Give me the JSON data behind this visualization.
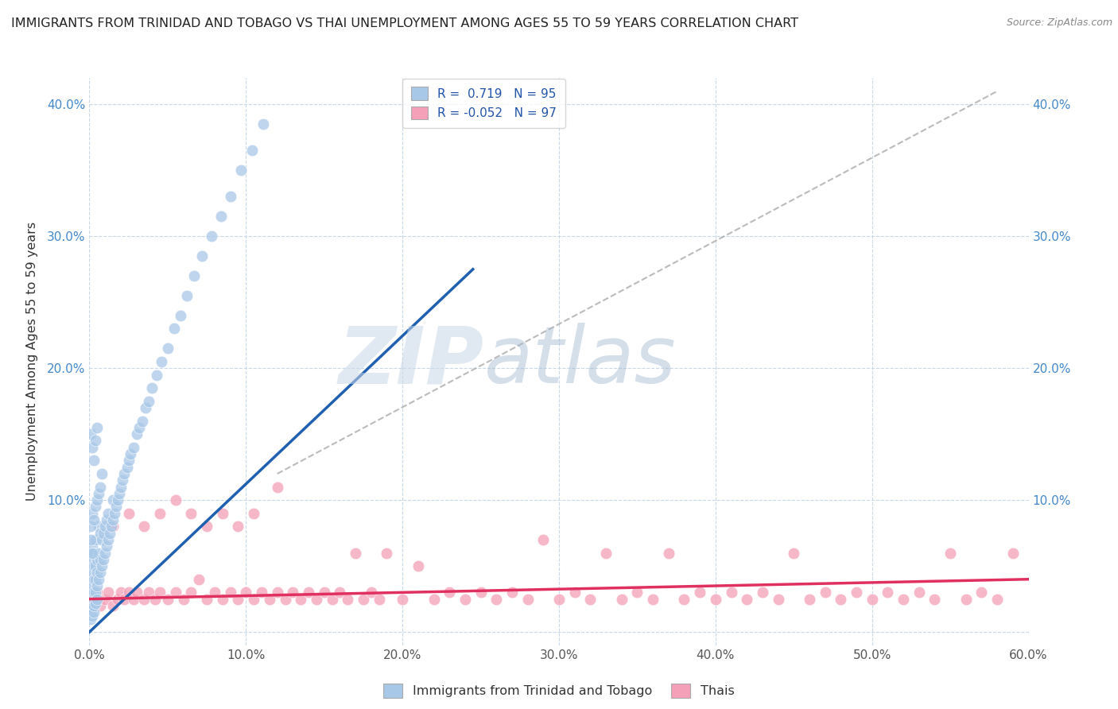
{
  "title": "IMMIGRANTS FROM TRINIDAD AND TOBAGO VS THAI UNEMPLOYMENT AMONG AGES 55 TO 59 YEARS CORRELATION CHART",
  "source": "Source: ZipAtlas.com",
  "ylabel": "Unemployment Among Ages 55 to 59 years",
  "xlim": [
    0.0,
    0.6
  ],
  "ylim": [
    -0.01,
    0.42
  ],
  "xticks": [
    0.0,
    0.1,
    0.2,
    0.3,
    0.4,
    0.5,
    0.6
  ],
  "xticklabels": [
    "0.0%",
    "10.0%",
    "20.0%",
    "30.0%",
    "40.0%",
    "50.0%",
    "60.0%"
  ],
  "yticks": [
    0.0,
    0.1,
    0.2,
    0.3,
    0.4
  ],
  "yticklabels": [
    "",
    "10.0%",
    "20.0%",
    "30.0%",
    "40.0%"
  ],
  "blue_R": "0.719",
  "blue_N": "95",
  "pink_R": "-0.052",
  "pink_N": "97",
  "blue_color": "#a8c8e8",
  "pink_color": "#f4a0b8",
  "blue_line_color": "#2060b0",
  "pink_line_color": "#e03060",
  "trend_line_color": "#aaaaaa",
  "grid_color": "#c8d8e8",
  "background_color": "#ffffff",
  "watermark_zip": "ZIP",
  "watermark_atlas": "atlas",
  "legend1": "Immigrants from Trinidad and Tobago",
  "legend2": "Thais",
  "blue_scatter_x": [
    0.001,
    0.001,
    0.001,
    0.001,
    0.001,
    0.002,
    0.002,
    0.002,
    0.002,
    0.002,
    0.003,
    0.003,
    0.003,
    0.003,
    0.004,
    0.004,
    0.004,
    0.004,
    0.005,
    0.005,
    0.005,
    0.006,
    0.006,
    0.006,
    0.007,
    0.007,
    0.007,
    0.008,
    0.008,
    0.009,
    0.009,
    0.01,
    0.01,
    0.011,
    0.011,
    0.012,
    0.012,
    0.013,
    0.014,
    0.015,
    0.015,
    0.016,
    0.017,
    0.018,
    0.019,
    0.02,
    0.021,
    0.022,
    0.024,
    0.025,
    0.026,
    0.028,
    0.03,
    0.032,
    0.034,
    0.036,
    0.038,
    0.04,
    0.043,
    0.046,
    0.05,
    0.054,
    0.058,
    0.062,
    0.067,
    0.072,
    0.078,
    0.084,
    0.09,
    0.097,
    0.104,
    0.111,
    0.001,
    0.001,
    0.002,
    0.002,
    0.003,
    0.003,
    0.004,
    0.005,
    0.001,
    0.001,
    0.002,
    0.002,
    0.003,
    0.004,
    0.005,
    0.006,
    0.007,
    0.008,
    0.001,
    0.002,
    0.003,
    0.004,
    0.005
  ],
  "blue_scatter_y": [
    0.02,
    0.03,
    0.04,
    0.05,
    0.06,
    0.025,
    0.035,
    0.045,
    0.055,
    0.065,
    0.03,
    0.04,
    0.05,
    0.06,
    0.03,
    0.04,
    0.05,
    0.07,
    0.035,
    0.045,
    0.055,
    0.04,
    0.06,
    0.08,
    0.045,
    0.055,
    0.075,
    0.05,
    0.07,
    0.055,
    0.075,
    0.06,
    0.08,
    0.065,
    0.085,
    0.07,
    0.09,
    0.075,
    0.08,
    0.085,
    0.1,
    0.09,
    0.095,
    0.1,
    0.105,
    0.11,
    0.115,
    0.12,
    0.125,
    0.13,
    0.135,
    0.14,
    0.15,
    0.155,
    0.16,
    0.17,
    0.175,
    0.185,
    0.195,
    0.205,
    0.215,
    0.23,
    0.24,
    0.255,
    0.27,
    0.285,
    0.3,
    0.315,
    0.33,
    0.35,
    0.365,
    0.385,
    0.01,
    0.015,
    0.012,
    0.018,
    0.015,
    0.02,
    0.022,
    0.025,
    0.07,
    0.08,
    0.06,
    0.09,
    0.085,
    0.095,
    0.1,
    0.105,
    0.11,
    0.12,
    0.15,
    0.14,
    0.13,
    0.145,
    0.155
  ],
  "pink_scatter_x": [
    0.001,
    0.003,
    0.005,
    0.007,
    0.01,
    0.012,
    0.015,
    0.018,
    0.02,
    0.022,
    0.025,
    0.028,
    0.03,
    0.035,
    0.038,
    0.042,
    0.045,
    0.05,
    0.055,
    0.06,
    0.065,
    0.07,
    0.075,
    0.08,
    0.085,
    0.09,
    0.095,
    0.1,
    0.105,
    0.11,
    0.115,
    0.12,
    0.125,
    0.13,
    0.135,
    0.14,
    0.145,
    0.15,
    0.155,
    0.16,
    0.165,
    0.17,
    0.175,
    0.18,
    0.185,
    0.19,
    0.2,
    0.21,
    0.22,
    0.23,
    0.24,
    0.25,
    0.26,
    0.27,
    0.28,
    0.29,
    0.3,
    0.31,
    0.32,
    0.33,
    0.34,
    0.35,
    0.36,
    0.37,
    0.38,
    0.39,
    0.4,
    0.41,
    0.42,
    0.43,
    0.44,
    0.45,
    0.46,
    0.47,
    0.48,
    0.49,
    0.5,
    0.51,
    0.52,
    0.53,
    0.54,
    0.55,
    0.56,
    0.57,
    0.58,
    0.59,
    0.015,
    0.025,
    0.035,
    0.045,
    0.055,
    0.065,
    0.075,
    0.085,
    0.095,
    0.105,
    0.12
  ],
  "pink_scatter_y": [
    0.02,
    0.025,
    0.03,
    0.02,
    0.025,
    0.03,
    0.02,
    0.025,
    0.03,
    0.025,
    0.03,
    0.025,
    0.03,
    0.025,
    0.03,
    0.025,
    0.03,
    0.025,
    0.03,
    0.025,
    0.03,
    0.04,
    0.025,
    0.03,
    0.025,
    0.03,
    0.025,
    0.03,
    0.025,
    0.03,
    0.025,
    0.03,
    0.025,
    0.03,
    0.025,
    0.03,
    0.025,
    0.03,
    0.025,
    0.03,
    0.025,
    0.06,
    0.025,
    0.03,
    0.025,
    0.06,
    0.025,
    0.05,
    0.025,
    0.03,
    0.025,
    0.03,
    0.025,
    0.03,
    0.025,
    0.07,
    0.025,
    0.03,
    0.025,
    0.06,
    0.025,
    0.03,
    0.025,
    0.06,
    0.025,
    0.03,
    0.025,
    0.03,
    0.025,
    0.03,
    0.025,
    0.06,
    0.025,
    0.03,
    0.025,
    0.03,
    0.025,
    0.03,
    0.025,
    0.03,
    0.025,
    0.06,
    0.025,
    0.03,
    0.025,
    0.06,
    0.08,
    0.09,
    0.08,
    0.09,
    0.1,
    0.09,
    0.08,
    0.09,
    0.08,
    0.09,
    0.11
  ],
  "blue_line_x": [
    0.0,
    0.245
  ],
  "blue_line_y": [
    0.0,
    0.275
  ],
  "pink_line_x": [
    0.0,
    0.6
  ],
  "pink_line_y": [
    0.025,
    0.04
  ],
  "dash_line_x": [
    0.12,
    0.58
  ],
  "dash_line_y": [
    0.12,
    0.41
  ]
}
